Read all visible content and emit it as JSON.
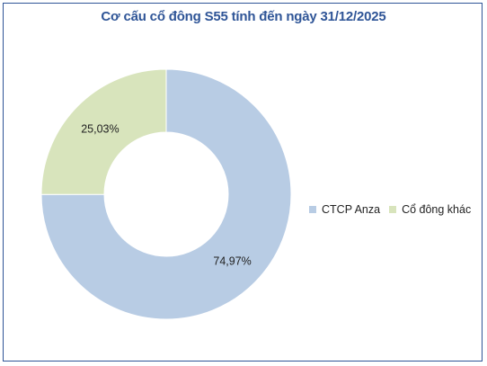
{
  "chart_data": {
    "type": "pie",
    "variant": "donut",
    "title": "Cơ cấu cổ đông S55 tính đến ngày 31/12/2025",
    "slices": [
      {
        "name": "CTCP Anza",
        "value": 74.97,
        "label": "74,97%",
        "color": "#b8cce4"
      },
      {
        "name": "Cổ đông khác",
        "value": 25.03,
        "label": "25,03%",
        "color": "#d8e4bc"
      }
    ],
    "legend_position": "right"
  },
  "colors": {
    "title": "#2f5597",
    "border": "#2f5597"
  }
}
